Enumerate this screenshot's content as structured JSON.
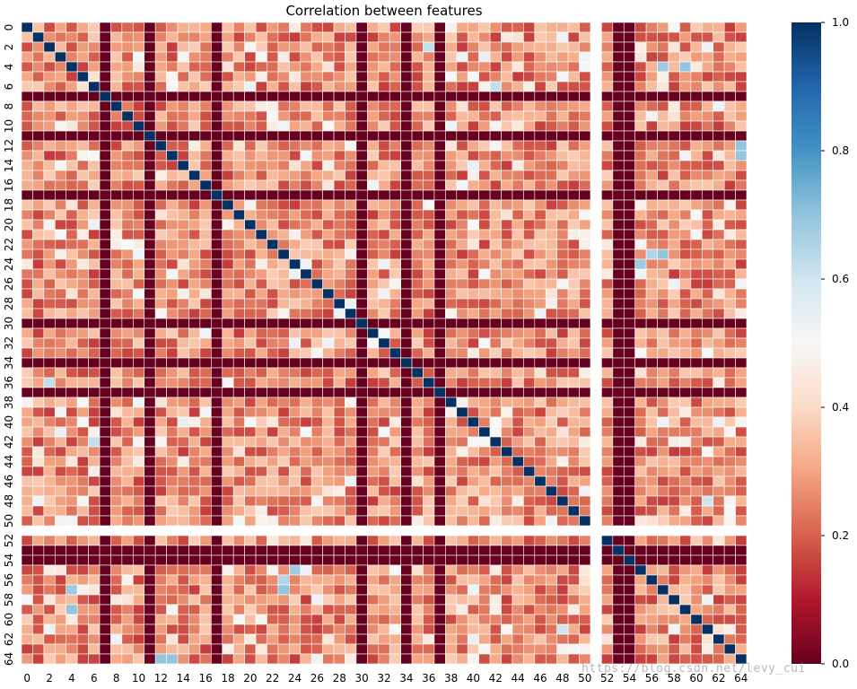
{
  "chart_data": {
    "type": "heatmap",
    "title": "Correlation between features",
    "n": 65,
    "cmap": "RdBu",
    "vmin": 0.0,
    "vmax": 1.0,
    "tick_labels": [
      "0",
      "2",
      "4",
      "6",
      "8",
      "10",
      "12",
      "14",
      "16",
      "18",
      "20",
      "22",
      "24",
      "26",
      "28",
      "30",
      "32",
      "34",
      "36",
      "38",
      "40",
      "42",
      "44",
      "46",
      "48",
      "50",
      "52",
      "54",
      "56",
      "58",
      "60",
      "62",
      "64"
    ],
    "colorbar_ticks": [
      "0.0",
      "0.2",
      "0.4",
      "0.6",
      "0.8",
      "1.0"
    ],
    "diagonal_value": 1.0,
    "constant_features": [
      51
    ],
    "zero_features": [
      7,
      11,
      17,
      30,
      34,
      37,
      53,
      54
    ],
    "typical_offdiagonal_range": [
      0.15,
      0.4
    ],
    "notable_values": [
      {
        "i": 23,
        "j": 56,
        "value": 0.65
      },
      {
        "i": 23,
        "j": 57,
        "value": 0.7
      },
      {
        "i": 55,
        "j": 24,
        "value": 0.68
      },
      {
        "i": 12,
        "j": 64,
        "value": 0.7
      },
      {
        "i": 42,
        "j": 6,
        "value": 0.62
      },
      {
        "i": 59,
        "j": 4,
        "value": 0.7
      },
      {
        "i": 64,
        "j": 13,
        "value": 0.7
      },
      {
        "i": 36,
        "j": 2,
        "value": 0.62
      },
      {
        "i": 4,
        "j": 57,
        "value": 0.68
      },
      {
        "i": 48,
        "j": 61,
        "value": 0.6
      }
    ]
  },
  "watermark": "https://blog.csdn.net/levy_cui"
}
